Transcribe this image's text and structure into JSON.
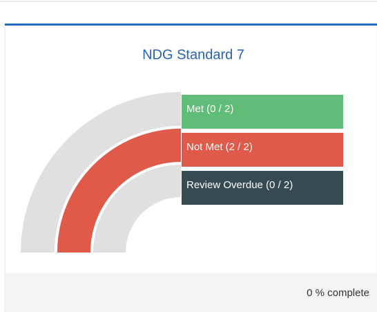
{
  "chart_data": {
    "type": "radial-bar",
    "title": "NDG Standard 7",
    "categories": [
      "Met (0 / 2)",
      "Not Met (2 / 2)",
      "Review Overdue (0 / 2)"
    ],
    "values": [
      0,
      2,
      0
    ],
    "colors": [
      "#5fbd78",
      "#e05a4a",
      "#364a52"
    ],
    "track_color": "#e0e0e0",
    "xlim": [
      0,
      2
    ],
    "footer": "0 % complete"
  }
}
